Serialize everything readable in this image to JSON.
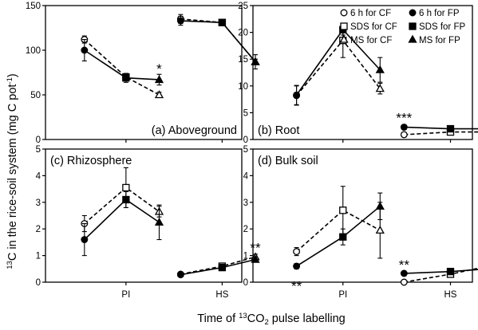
{
  "figure": {
    "ylabel_sup": "13",
    "ylabel_main": "C in the rice-soil system (mg C pot",
    "ylabel_exp": "-1",
    "ylabel_end": ")",
    "xlabel_pre": "Time of ",
    "xlabel_sup": "13",
    "xlabel_mid": "CO",
    "xlabel_sub": "2",
    "xlabel_post": " pulse labelling"
  },
  "legend": {
    "items": [
      {
        "label": "6 h for CF",
        "marker": "circle",
        "fill": "open"
      },
      {
        "label": "6 h for FP",
        "marker": "circle",
        "fill": "filled"
      },
      {
        "label": "SDS for CF",
        "marker": "square",
        "fill": "open"
      },
      {
        "label": "SDS for FP",
        "marker": "square",
        "fill": "filled"
      },
      {
        "label": "MS for CF",
        "marker": "triangle",
        "fill": "open"
      },
      {
        "label": "MS for FP",
        "marker": "triangle",
        "fill": "filled"
      }
    ]
  },
  "chart_data": [
    {
      "type": "line",
      "title": "(a) Aboveground",
      "ylim": [
        0,
        150
      ],
      "yticks": [
        "0",
        "50",
        "100",
        "150"
      ],
      "xticks": [
        "PI",
        "HS"
      ],
      "series": [
        {
          "name": "CF",
          "style": "dashed",
          "points": [
            {
              "stage": "PI",
              "sampling": "6 h",
              "y": 112,
              "err": 4
            },
            {
              "stage": "PI",
              "sampling": "SDS",
              "y": 70,
              "err": 4
            },
            {
              "stage": "PI",
              "sampling": "MS",
              "y": 50,
              "err": 3
            },
            {
              "stage": "HS",
              "sampling": "6 h",
              "y": 135,
              "err": 5
            },
            {
              "stage": "HS",
              "sampling": "SDS",
              "y": 131,
              "err": 3
            },
            {
              "stage": "HS",
              "sampling": "MS",
              "y": 87,
              "err": 3
            }
          ]
        },
        {
          "name": "FP",
          "style": "solid",
          "points": [
            {
              "stage": "PI",
              "sampling": "6 h",
              "y": 100,
              "err": 12
            },
            {
              "stage": "PI",
              "sampling": "SDS",
              "y": 69,
              "err": 5
            },
            {
              "stage": "PI",
              "sampling": "MS",
              "y": 67,
              "err": 6
            },
            {
              "stage": "HS",
              "sampling": "6 h",
              "y": 133,
              "err": 5
            },
            {
              "stage": "HS",
              "sampling": "SDS",
              "y": 131,
              "err": 3
            },
            {
              "stage": "HS",
              "sampling": "MS",
              "y": 87,
              "err": 8
            }
          ]
        }
      ],
      "annotations": [
        {
          "stage": "PI",
          "sampling": "MS",
          "text": "*",
          "y": 74
        }
      ]
    },
    {
      "type": "line",
      "title": "(b) Root",
      "ylim": [
        0,
        25
      ],
      "yticks": [
        "0",
        "5",
        "10",
        "15",
        "20",
        "25"
      ],
      "xticks": [
        "PI",
        "HS"
      ],
      "series": [
        {
          "name": "CF",
          "style": "dashed",
          "points": [
            {
              "stage": "PI",
              "sampling": "6 h",
              "y": 8.2,
              "err": 1.8
            },
            {
              "stage": "PI",
              "sampling": "SDS",
              "y": 18.5,
              "err": 3.2
            },
            {
              "stage": "PI",
              "sampling": "MS",
              "y": 9.5,
              "err": 1.0
            },
            {
              "stage": "HS",
              "sampling": "6 h",
              "y": 0.9,
              "err": 0.2
            },
            {
              "stage": "HS",
              "sampling": "SDS",
              "y": 1.4,
              "err": 0.2
            },
            {
              "stage": "HS",
              "sampling": "MS",
              "y": 1.4,
              "err": 0.2
            }
          ]
        },
        {
          "name": "FP",
          "style": "solid",
          "points": [
            {
              "stage": "PI",
              "sampling": "6 h",
              "y": 8.3,
              "err": 1.8
            },
            {
              "stage": "PI",
              "sampling": "SDS",
              "y": 20.5,
              "err": 1.0
            },
            {
              "stage": "PI",
              "sampling": "MS",
              "y": 13.0,
              "err": 2.3
            },
            {
              "stage": "HS",
              "sampling": "6 h",
              "y": 2.3,
              "err": 0.2
            },
            {
              "stage": "HS",
              "sampling": "SDS",
              "y": 2.0,
              "err": 0.2
            },
            {
              "stage": "HS",
              "sampling": "MS",
              "y": 2.0,
              "err": 0.2
            }
          ]
        }
      ],
      "annotations": [
        {
          "stage": "HS",
          "sampling": "6 h",
          "text": "***",
          "y": 3.2
        },
        {
          "stage": "HS",
          "sampling": "MS",
          "text": "**",
          "y": 2.9
        }
      ]
    },
    {
      "type": "line",
      "title": "(c) Rhizosphere",
      "ylim": [
        0,
        5
      ],
      "yticks": [
        "0",
        "1",
        "2",
        "3",
        "4",
        "5"
      ],
      "xticks": [
        "PI",
        "HS"
      ],
      "series": [
        {
          "name": "CF",
          "style": "dashed",
          "points": [
            {
              "stage": "PI",
              "sampling": "6 h",
              "y": 2.2,
              "err": 0.3
            },
            {
              "stage": "PI",
              "sampling": "SDS",
              "y": 3.55,
              "err": 0.75
            },
            {
              "stage": "PI",
              "sampling": "MS",
              "y": 2.65,
              "err": 0.2
            },
            {
              "stage": "HS",
              "sampling": "6 h",
              "y": 0.3,
              "err": 0.05
            },
            {
              "stage": "HS",
              "sampling": "SDS",
              "y": 0.6,
              "err": 0.05
            },
            {
              "stage": "HS",
              "sampling": "MS",
              "y": 0.95,
              "err": 0.1
            }
          ]
        },
        {
          "name": "FP",
          "style": "solid",
          "points": [
            {
              "stage": "PI",
              "sampling": "6 h",
              "y": 1.6,
              "err": 0.6
            },
            {
              "stage": "PI",
              "sampling": "SDS",
              "y": 3.1,
              "err": 0.3
            },
            {
              "stage": "PI",
              "sampling": "MS",
              "y": 2.25,
              "err": 0.65
            },
            {
              "stage": "HS",
              "sampling": "6 h",
              "y": 0.28,
              "err": 0.05
            },
            {
              "stage": "HS",
              "sampling": "SDS",
              "y": 0.55,
              "err": 0.05
            },
            {
              "stage": "HS",
              "sampling": "MS",
              "y": 0.85,
              "err": 0.1
            }
          ]
        }
      ],
      "annotations": [
        {
          "stage": "HS",
          "sampling": "MS",
          "text": "**",
          "y": 1.12
        }
      ]
    },
    {
      "type": "line",
      "title": "(d) Bulk soil",
      "ylim": [
        0,
        5
      ],
      "yticks": [
        "0",
        "1",
        "2",
        "3",
        "4",
        "5"
      ],
      "xticks": [
        "PI",
        "HS"
      ],
      "series": [
        {
          "name": "CF",
          "style": "dashed",
          "points": [
            {
              "stage": "PI",
              "sampling": "6 h",
              "y": 1.15,
              "err": 0.15
            },
            {
              "stage": "PI",
              "sampling": "SDS",
              "y": 2.7,
              "err": 0.9
            },
            {
              "stage": "PI",
              "sampling": "MS",
              "y": 1.95,
              "err": 1.05
            },
            {
              "stage": "HS",
              "sampling": "6 h",
              "y": 0.0,
              "err": 0.0
            },
            {
              "stage": "HS",
              "sampling": "SDS",
              "y": 0.3,
              "err": 0.03
            },
            {
              "stage": "HS",
              "sampling": "MS",
              "y": 0.6,
              "err": 0.05
            }
          ]
        },
        {
          "name": "FP",
          "style": "solid",
          "points": [
            {
              "stage": "PI",
              "sampling": "6 h",
              "y": 0.6,
              "err": 0.1
            },
            {
              "stage": "PI",
              "sampling": "SDS",
              "y": 1.7,
              "err": 0.3
            },
            {
              "stage": "PI",
              "sampling": "MS",
              "y": 2.85,
              "err": 0.5
            },
            {
              "stage": "HS",
              "sampling": "6 h",
              "y": 0.33,
              "err": 0.03
            },
            {
              "stage": "HS",
              "sampling": "SDS",
              "y": 0.4,
              "err": 0.03
            },
            {
              "stage": "HS",
              "sampling": "MS",
              "y": 0.5,
              "err": 0.05
            }
          ]
        }
      ],
      "annotations": [
        {
          "stage": "PI",
          "sampling": "6 h",
          "text": "**",
          "y": 0.05
        },
        {
          "stage": "HS",
          "sampling": "6 h",
          "text": "**",
          "y": 0.48
        }
      ]
    }
  ]
}
